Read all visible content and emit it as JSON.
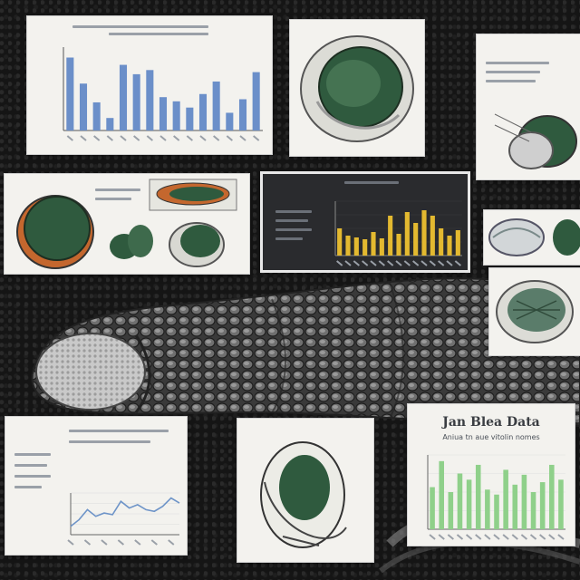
{
  "collage": {
    "background_color": "#151515",
    "panel_heading": {
      "title": "Jan Blea Data",
      "subtitle": "Aniua tn aue vitolin nomes"
    }
  },
  "colors": {
    "bar_blue": "#6b8fc9",
    "bar_yellow": "#e3b930",
    "bar_green": "#8fd08a",
    "line_blue": "#6e94c8",
    "specimen_green": "#2f5a3e",
    "specimen_orange": "#c4672e"
  },
  "chart_data": [
    {
      "type": "bar",
      "panel": "top-left",
      "title": "",
      "values": [
        70,
        45,
        27,
        12,
        63,
        54,
        58,
        32,
        28,
        22,
        35,
        47,
        17,
        30,
        56
      ],
      "ylim": [
        0,
        80
      ]
    },
    {
      "type": "bar",
      "panel": "center-dark",
      "title": "",
      "values": [
        30,
        22,
        20,
        18,
        26,
        19,
        44,
        24,
        48,
        36,
        50,
        44,
        30,
        22,
        28
      ],
      "ylim": [
        0,
        60
      ]
    },
    {
      "type": "line",
      "panel": "bottom-left",
      "title": "",
      "values": [
        10,
        18,
        30,
        22,
        26,
        24,
        40,
        32,
        36,
        30,
        28,
        34,
        44,
        38
      ],
      "ylim": [
        0,
        50
      ]
    },
    {
      "type": "bar",
      "panel": "bottom-right",
      "title": "Jan Blea Data",
      "values": [
        34,
        55,
        30,
        45,
        40,
        52,
        32,
        28,
        48,
        36,
        44,
        30,
        38,
        52,
        40
      ],
      "ylim": [
        0,
        60
      ]
    }
  ]
}
